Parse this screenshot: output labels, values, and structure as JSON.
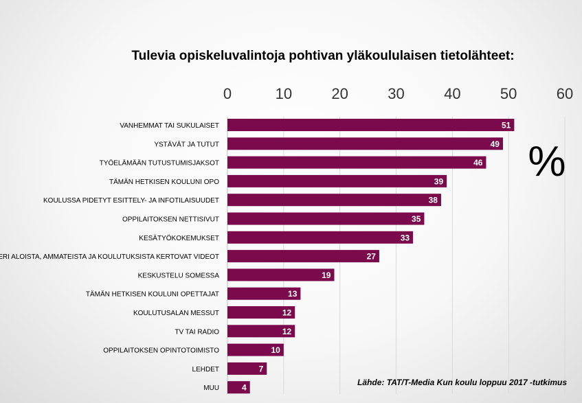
{
  "chart_data": {
    "type": "bar",
    "orientation": "horizontal",
    "title": "Tulevia opiskeluvalintoja pohtivan yläkoululaisen tietolähteet:",
    "unit_label": "%",
    "source": "Lähde: TAT/T-Media Kun koulu loppuu 2017 -tutkimus",
    "xlim": [
      0,
      60
    ],
    "x_ticks": [
      "0",
      "10",
      "20",
      "30",
      "40",
      "50",
      "60"
    ],
    "axis_position": "top",
    "grid": true,
    "bar_color": "#7B0A4C",
    "categories": [
      "VANHEMMAT TAI SUKULAISET",
      "YSTÄVÄT JA TUTUT",
      "TYÖELÄMÄÄN TUTUSTUMISJAKSOT",
      "TÄMÄN HETKISEN KOULUNI OPO",
      "KOULUSSA PIDETYT ESITTELY- JA INFOTILAISUUDET",
      "OPPILAITOKSEN NETTISIVUT",
      "KESÄTYÖKOKEMUKSET",
      "ERI ALOISTA, AMMATEISTA JA KOULUTUKSISTA KERTOVAT VIDEOT",
      "KESKUSTELU SOMESSA",
      "TÄMÄN HETKISEN KOULUNI OPETTAJAT",
      "KOULUTUSALAN MESSUT",
      "TV TAI RADIO",
      "OPPILAITOKSEN OPINTOTOIMISTO",
      "LEHDET",
      "MUU"
    ],
    "values": [
      51,
      49,
      46,
      39,
      38,
      35,
      33,
      27,
      19,
      13,
      12,
      12,
      10,
      7,
      4
    ]
  }
}
